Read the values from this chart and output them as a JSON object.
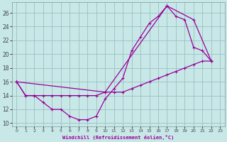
{
  "xlabel": "Windchill (Refroidissement éolien,°C)",
  "xlim": [
    -0.5,
    23.5
  ],
  "ylim": [
    9.5,
    27.5
  ],
  "xticks": [
    0,
    1,
    2,
    3,
    4,
    5,
    6,
    7,
    8,
    9,
    10,
    11,
    12,
    13,
    14,
    15,
    16,
    17,
    18,
    19,
    20,
    21,
    22,
    23
  ],
  "yticks": [
    10,
    12,
    14,
    16,
    18,
    20,
    22,
    24,
    26
  ],
  "bg_color": "#c8e8e8",
  "line_color": "#990099",
  "grid_color": "#9bbfbf",
  "line1_x": [
    0,
    1,
    2,
    3,
    4,
    5,
    6,
    7,
    8,
    9,
    10,
    11,
    12,
    13,
    14,
    15,
    16,
    17,
    18,
    19,
    20,
    21,
    22
  ],
  "line1_y": [
    16,
    14,
    14,
    13,
    12,
    12,
    11,
    10.5,
    10.5,
    11,
    13.5,
    15,
    16.5,
    20.5,
    22.5,
    24.5,
    25.5,
    27,
    25.5,
    25,
    21,
    20.5,
    19
  ],
  "line2_x": [
    0,
    1,
    2,
    3,
    4,
    5,
    6,
    7,
    8,
    9,
    10,
    11,
    12,
    13,
    14,
    15,
    16,
    17,
    18,
    19,
    20,
    21,
    22
  ],
  "line2_y": [
    16,
    14,
    14,
    14,
    14,
    14,
    14,
    14,
    14,
    14,
    14.5,
    14.5,
    14.5,
    15,
    15.5,
    16,
    16.5,
    17,
    17.5,
    18,
    18.5,
    19,
    19
  ],
  "line3_x": [
    0,
    10,
    17,
    20,
    22
  ],
  "line3_y": [
    16,
    14.5,
    27,
    25,
    19
  ]
}
